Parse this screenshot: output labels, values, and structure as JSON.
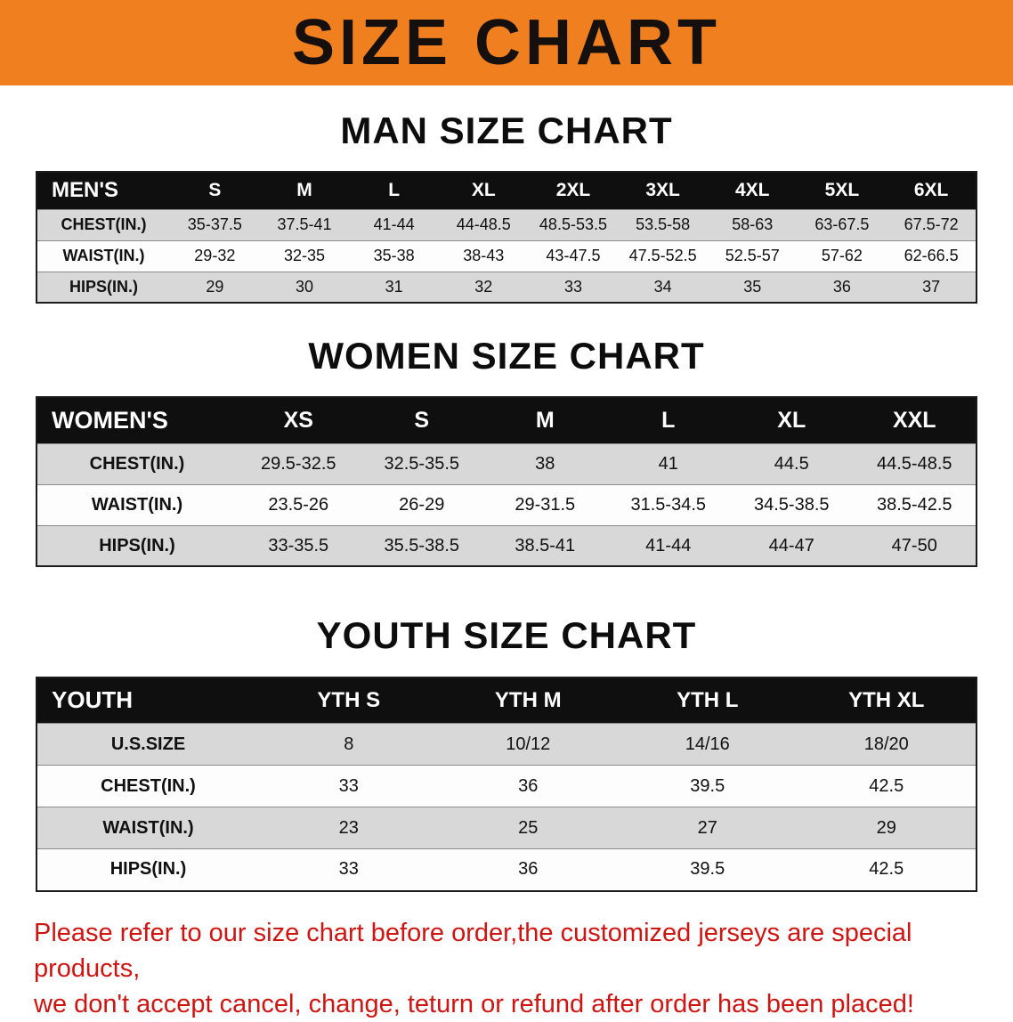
{
  "banner": {
    "title": "SIZE CHART"
  },
  "sections": [
    {
      "id": "men",
      "heading": "MAN SIZE CHART",
      "table": {
        "header": [
          "MEN'S",
          "S",
          "M",
          "L",
          "XL",
          "2XL",
          "3XL",
          "4XL",
          "5XL",
          "6XL"
        ],
        "rows": [
          [
            "CHEST(IN.)",
            "35-37.5",
            "37.5-41",
            "41-44",
            "44-48.5",
            "48.5-53.5",
            "53.5-58",
            "58-63",
            "63-67.5",
            "67.5-72"
          ],
          [
            "WAIST(IN.)",
            "29-32",
            "32-35",
            "35-38",
            "38-43",
            "43-47.5",
            "47.5-52.5",
            "52.5-57",
            "57-62",
            "62-66.5"
          ],
          [
            "HIPS(IN.)",
            "29",
            "30",
            "31",
            "32",
            "33",
            "34",
            "35",
            "36",
            "37"
          ]
        ]
      }
    },
    {
      "id": "women",
      "heading": "WOMEN SIZE CHART",
      "table": {
        "header": [
          "WOMEN'S",
          "XS",
          "S",
          "M",
          "L",
          "XL",
          "XXL"
        ],
        "rows": [
          [
            "CHEST(IN.)",
            "29.5-32.5",
            "32.5-35.5",
            "38",
            "41",
            "44.5",
            "44.5-48.5"
          ],
          [
            "WAIST(IN.)",
            "23.5-26",
            "26-29",
            "29-31.5",
            "31.5-34.5",
            "34.5-38.5",
            "38.5-42.5"
          ],
          [
            "HIPS(IN.)",
            "33-35.5",
            "35.5-38.5",
            "38.5-41",
            "41-44",
            "44-47",
            "47-50"
          ]
        ]
      }
    },
    {
      "id": "youth",
      "heading": "YOUTH SIZE CHART",
      "table": {
        "header": [
          "YOUTH",
          "YTH S",
          "YTH M",
          "YTH L",
          "YTH XL"
        ],
        "rows": [
          [
            "U.S.SIZE",
            "8",
            "10/12",
            "14/16",
            "18/20"
          ],
          [
            "CHEST(IN.)",
            "33",
            "36",
            "39.5",
            "42.5"
          ],
          [
            "WAIST(IN.)",
            "23",
            "25",
            "27",
            "29"
          ],
          [
            "HIPS(IN.)",
            "33",
            "36",
            "39.5",
            "42.5"
          ]
        ]
      }
    }
  ],
  "disclaimer": {
    "line1": "Please refer to our size chart before order,the customized jerseys are special products,",
    "line2": "we don't accept cancel, change, teturn or refund after order has been placed!"
  },
  "colors": {
    "banner_bg": "#F0801F",
    "table_header_bg": "#0F0F0F",
    "row_stripe": "#D8D8D8",
    "disclaimer_text": "#CE1512"
  }
}
